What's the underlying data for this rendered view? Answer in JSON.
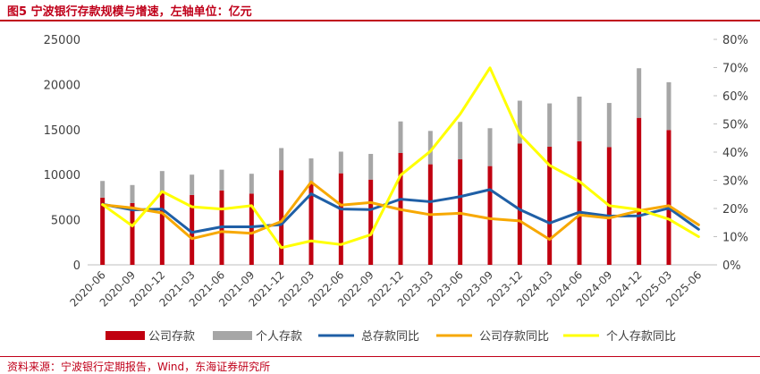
{
  "figure": {
    "title": "图5  宁波银行存款规模与增速，左轴单位：亿元",
    "source": "资料来源：宁波银行定期报告，Wind，东海证券研究所"
  },
  "colors": {
    "title": "#c0001a",
    "company_deposit": "#c00010",
    "personal_deposit": "#a6a6a6",
    "total_yoy": "#1f5fa6",
    "company_yoy": "#f7a800",
    "personal_yoy": "#ffff00"
  },
  "chart_data": {
    "type": "bar",
    "stacked": true,
    "categories": [
      "2020-06",
      "2020-09",
      "2020-12",
      "2021-03",
      "2021-06",
      "2021-09",
      "2021-12",
      "2022-03",
      "2022-06",
      "2022-09",
      "2022-12",
      "2023-03",
      "2023-06",
      "2023-09",
      "2023-12",
      "2024-03",
      "2024-06",
      "2024-09",
      "2024-12",
      "2025-03",
      "2025-06"
    ],
    "y_left": {
      "lim": [
        0,
        25000
      ],
      "ticks": [
        "0",
        "5000",
        "10000",
        "15000",
        "20000",
        "25000"
      ]
    },
    "y_right": {
      "lim": [
        0,
        80
      ],
      "ticks": [
        "0%",
        "10%",
        "20%",
        "30%",
        "40%",
        "50%",
        "60%",
        "70%",
        "80%"
      ]
    },
    "series": [
      {
        "name": "公司存款",
        "type": "bar",
        "axis": "left",
        "values": [
          7450,
          6850,
          8150,
          7750,
          8250,
          7900,
          10500,
          9050,
          10150,
          9450,
          12400,
          11150,
          11700,
          10950,
          13450,
          13100,
          13700,
          13050,
          16300,
          14950,
          null
        ]
      },
      {
        "name": "个人存款",
        "type": "bar",
        "axis": "left",
        "values": [
          1850,
          2000,
          2250,
          2250,
          2300,
          2200,
          2450,
          2750,
          2400,
          2850,
          3500,
          3700,
          4150,
          4200,
          4750,
          4800,
          4950,
          4900,
          5500,
          5300,
          null
        ]
      },
      {
        "name": "总存款同比",
        "type": "line",
        "axis": "right",
        "values": [
          21.5,
          19.5,
          19.8,
          11.5,
          13.5,
          13.5,
          14.3,
          25.2,
          19.8,
          19.6,
          23.3,
          22.4,
          24.2,
          26.7,
          19.6,
          14.8,
          18.7,
          17.3,
          17.4,
          20.1,
          12.6
        ]
      },
      {
        "name": "公司存款同比",
        "type": "line",
        "axis": "right",
        "values": [
          21.3,
          20.2,
          18.4,
          9.3,
          11.8,
          11.2,
          15.4,
          29.4,
          21.2,
          22.1,
          19.6,
          17.8,
          18.3,
          16.4,
          15.6,
          9.0,
          17.7,
          16.6,
          19.2,
          21.0,
          14.2
        ]
      },
      {
        "name": "个人存款同比",
        "type": "line",
        "axis": "right",
        "values": [
          21.4,
          13.8,
          26.0,
          20.6,
          19.8,
          21.0,
          6.1,
          8.5,
          7.2,
          10.7,
          31.8,
          40.3,
          53.5,
          69.9,
          46.3,
          35.3,
          29.6,
          21.0,
          19.6,
          16.2,
          10.0
        ]
      }
    ]
  }
}
